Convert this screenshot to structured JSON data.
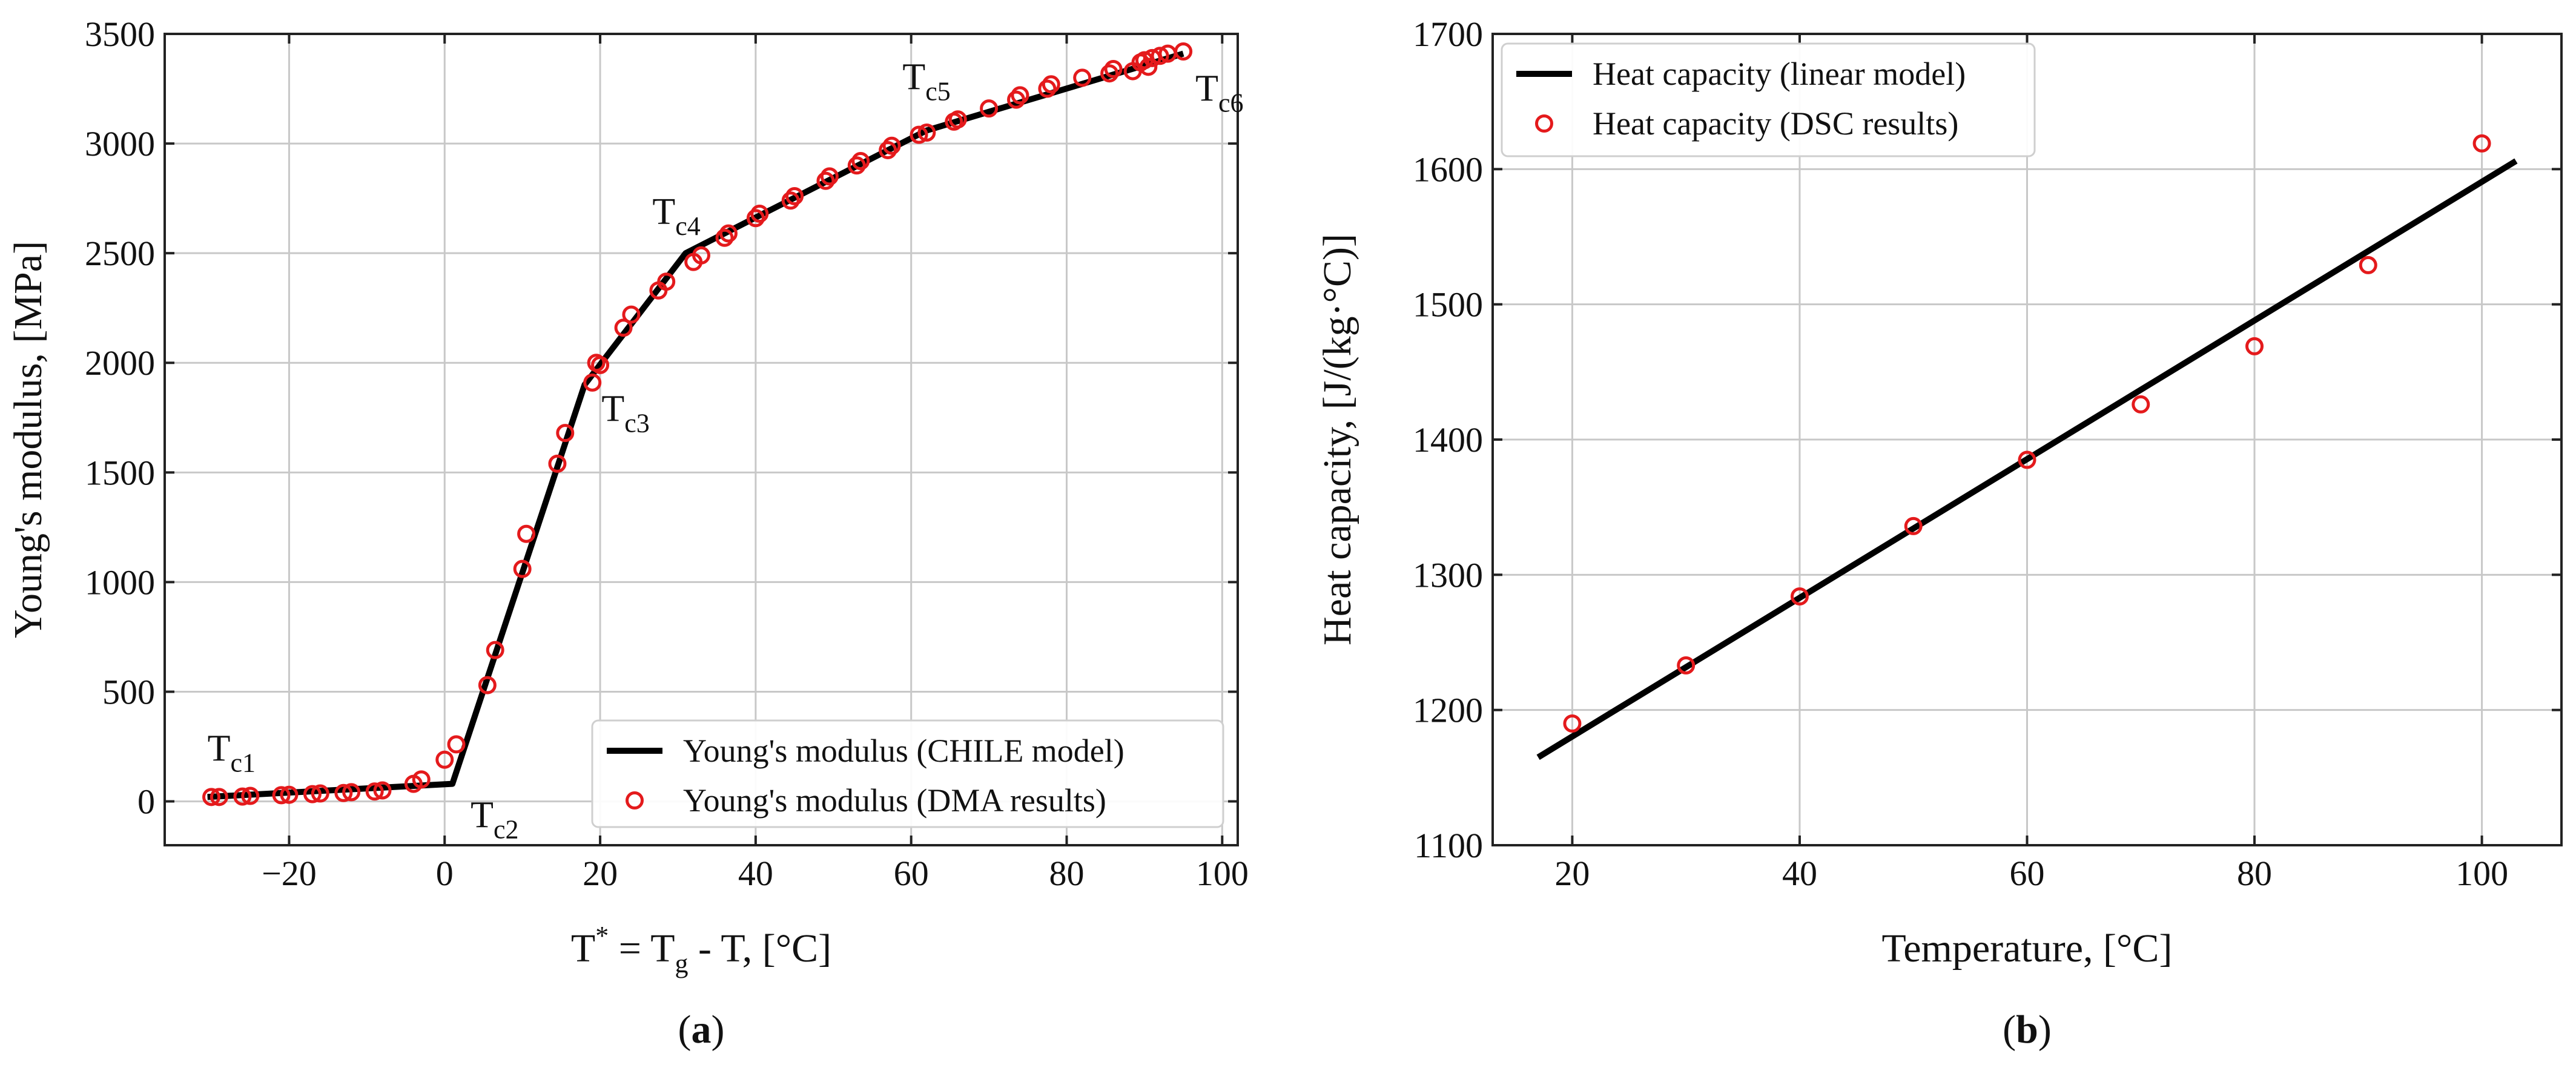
{
  "chart_data": [
    {
      "id": "a",
      "type": "line+scatter",
      "panel_label": "(a)",
      "panel_letter": "a",
      "ylabel": "Young's modulus, [MPa]",
      "xlabel": {
        "prefix": "T",
        "sup": "*",
        "mid": " = T",
        "sub": "g",
        "suffix": " - T, [°C]"
      },
      "xlim": [
        -36,
        102
      ],
      "ylim": [
        -200,
        3500
      ],
      "xticks": [
        -20,
        0,
        20,
        40,
        60,
        80,
        100
      ],
      "xtick_labels": [
        "−20",
        "0",
        "20",
        "40",
        "60",
        "80",
        "100"
      ],
      "yticks": [
        0,
        500,
        1000,
        1500,
        2000,
        2500,
        3000,
        3500
      ],
      "ytick_labels": [
        "0",
        "500",
        "1000",
        "1500",
        "2000",
        "2500",
        "3000",
        "3500"
      ],
      "grid": true,
      "legend_position": "lower-right",
      "series": [
        {
          "name": "Young's modulus (CHILE model)",
          "kind": "line",
          "color": "#000000",
          "x": [
            -30.5,
            1,
            18,
            31,
            62,
            95
          ],
          "y": [
            20,
            80,
            1900,
            2500,
            3060,
            3410
          ]
        },
        {
          "name": "Young's modulus (DMA results)",
          "kind": "scatter",
          "color": "#e41a1c",
          "x": [
            -30,
            -29,
            -26,
            -25,
            -21,
            -20,
            -17,
            -16,
            -13,
            -12,
            -9,
            -8,
            -4,
            -3,
            0,
            1.5,
            5.5,
            6.5,
            10,
            10.5,
            14.5,
            15.5,
            19,
            19.5,
            20,
            23,
            24,
            27.5,
            28.5,
            32,
            33,
            36,
            36.5,
            40,
            40.5,
            44.5,
            45,
            49,
            49.5,
            53,
            53.5,
            57,
            57.5,
            61,
            62,
            65.5,
            66,
            70,
            73.5,
            74,
            77.5,
            78,
            82,
            85.5,
            86,
            88.5,
            89.5,
            90,
            90.5,
            91,
            92,
            93,
            95
          ],
          "y": [
            20,
            20,
            22,
            25,
            28,
            30,
            33,
            36,
            38,
            42,
            45,
            50,
            80,
            100,
            190,
            260,
            530,
            690,
            1060,
            1220,
            1540,
            1680,
            1910,
            2000,
            1990,
            2160,
            2220,
            2330,
            2370,
            2460,
            2490,
            2570,
            2590,
            2660,
            2680,
            2740,
            2760,
            2830,
            2850,
            2900,
            2920,
            2970,
            2990,
            3040,
            3050,
            3100,
            3110,
            3160,
            3200,
            3220,
            3250,
            3270,
            3300,
            3320,
            3340,
            3330,
            3370,
            3380,
            3350,
            3390,
            3400,
            3410,
            3420
          ]
        }
      ],
      "annotations": [
        {
          "main": "T",
          "sub": "c1",
          "x": -30.5,
          "y": 20
        },
        {
          "main": "T",
          "sub": "c2",
          "x": 1,
          "y": 80
        },
        {
          "main": "T",
          "sub": "c3",
          "x": 18,
          "y": 1900
        },
        {
          "main": "T",
          "sub": "c4",
          "x": 31,
          "y": 2500
        },
        {
          "main": "T",
          "sub": "c5",
          "x": 62,
          "y": 3060
        },
        {
          "main": "T",
          "sub": "c6",
          "x": 95,
          "y": 3410
        }
      ]
    },
    {
      "id": "b",
      "type": "line+scatter",
      "panel_label": "(b)",
      "panel_letter": "b",
      "ylabel": "Heat capacity, [J/(kg·°C)]",
      "xlabel": {
        "prefix": "Temperature, [°C]",
        "sup": "",
        "mid": "",
        "sub": "",
        "suffix": ""
      },
      "xlim": [
        13,
        107
      ],
      "ylim": [
        1100,
        1700
      ],
      "xticks": [
        20,
        40,
        60,
        80,
        100
      ],
      "xtick_labels": [
        "20",
        "40",
        "60",
        "80",
        "100"
      ],
      "yticks": [
        1100,
        1200,
        1300,
        1400,
        1500,
        1600,
        1700
      ],
      "ytick_labels": [
        "1100",
        "1200",
        "1300",
        "1400",
        "1500",
        "1600",
        "1700"
      ],
      "grid": true,
      "legend_position": "top-left",
      "series": [
        {
          "name": "Heat capacity (linear model)",
          "kind": "line",
          "color": "#000000",
          "x": [
            17,
            103
          ],
          "y": [
            1165,
            1606
          ]
        },
        {
          "name": "Heat capacity (DSC results)",
          "kind": "scatter",
          "color": "#e41a1c",
          "x": [
            20,
            30,
            40,
            50,
            60,
            70,
            80,
            90,
            100
          ],
          "y": [
            1190,
            1233,
            1284,
            1336,
            1385,
            1426,
            1469,
            1529,
            1619
          ]
        }
      ],
      "annotations": []
    }
  ]
}
